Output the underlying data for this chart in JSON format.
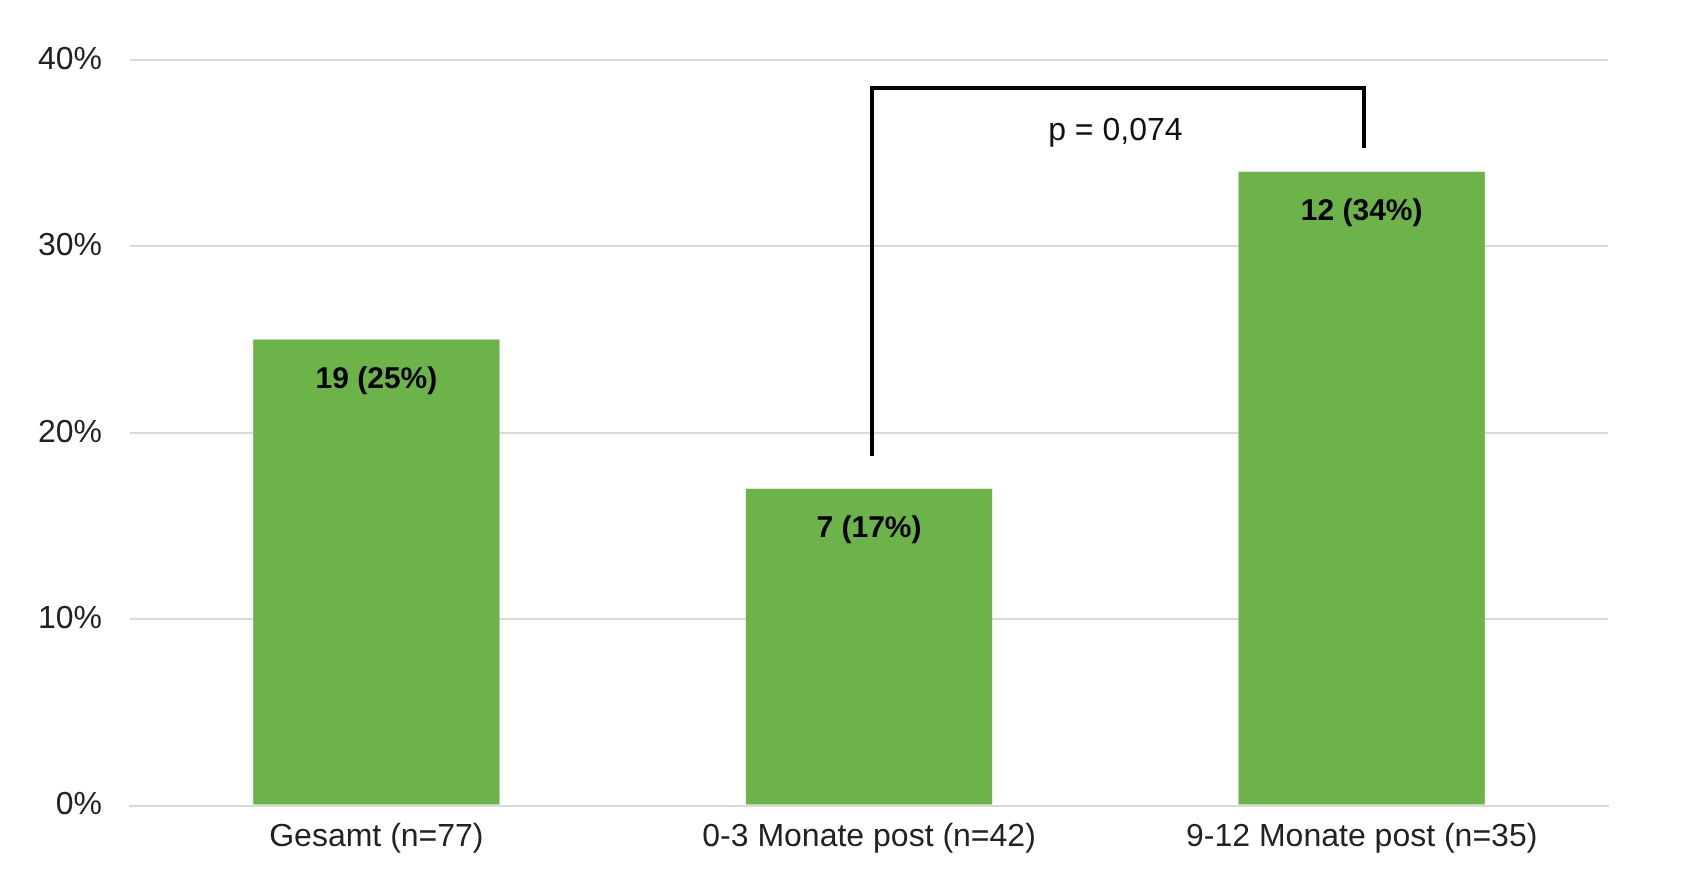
{
  "chart_data": {
    "type": "bar",
    "categories": [
      "Gesamt (n=77)",
      "0-3 Monate post (n=42)",
      "9-12 Monate post (n=35)"
    ],
    "values": [
      25,
      17,
      34
    ],
    "color": "#6cb34a",
    "value_labels": [
      "19 (25%)",
      "7 (17%)",
      "12 (34%)"
    ],
    "ylim": [
      0,
      40
    ],
    "yticks": [
      {
        "value": 0,
        "label": "0%"
      },
      {
        "value": 10,
        "label": "10%"
      },
      {
        "value": 20,
        "label": "20%"
      },
      {
        "value": 30,
        "label": "30%"
      },
      {
        "value": 40,
        "label": "40%"
      }
    ],
    "grid": "y",
    "legend": false,
    "annotations": [
      "p = 0,074"
    ]
  }
}
